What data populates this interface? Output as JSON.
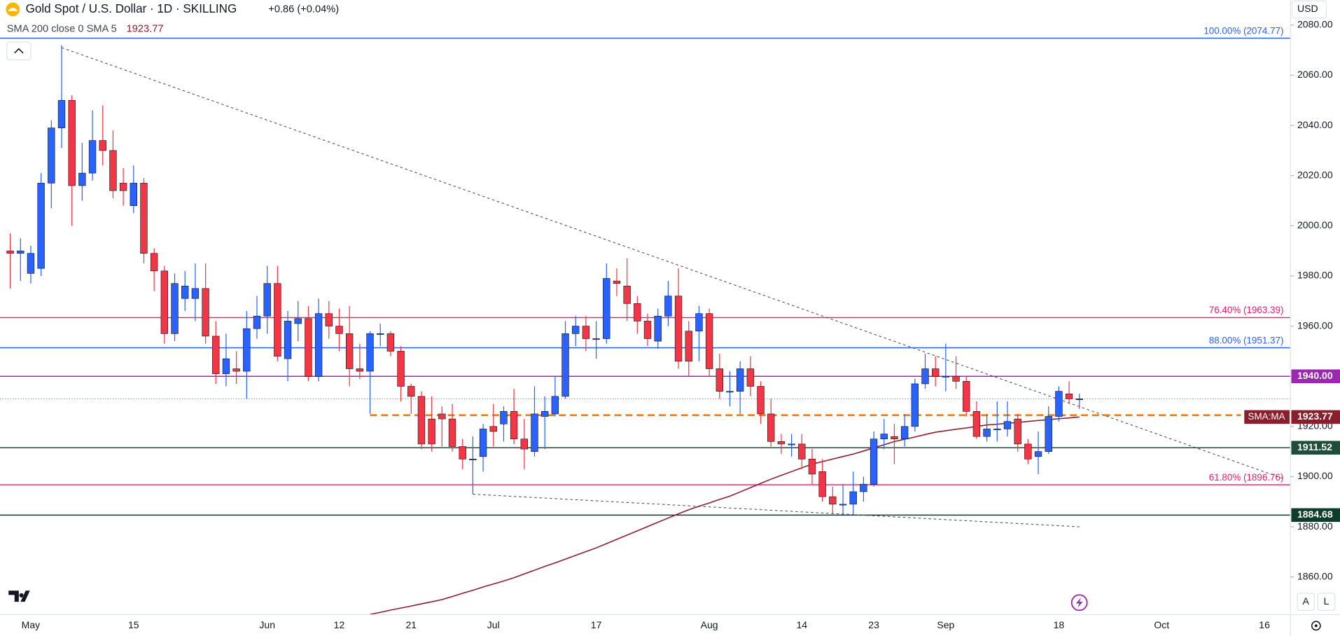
{
  "header": {
    "title": "Gold Spot / U.S. Dollar · 1D · SKILLING",
    "change": "+0.86 (+0.04%)",
    "indicator": "SMA 200 close 0 SMA 5"
  },
  "ui": {
    "currency": "USD",
    "buttons": [
      "A",
      "L"
    ]
  },
  "chart_data": {
    "type": "candlestick",
    "up_color": "#2962ff",
    "down_color": "#f23645",
    "categories": [
      null,
      null,
      "May",
      null,
      null,
      null,
      null,
      null,
      null,
      null,
      null,
      null,
      "15",
      null,
      null,
      null,
      null,
      null,
      null,
      null,
      null,
      null,
      null,
      null,
      null,
      "Jun",
      null,
      null,
      null,
      null,
      null,
      null,
      "12",
      null,
      null,
      null,
      null,
      null,
      null,
      "21",
      null,
      null,
      null,
      null,
      null,
      null,
      null,
      "Jul",
      null,
      null,
      null,
      null,
      null,
      null,
      null,
      null,
      null,
      "17",
      null,
      null,
      null,
      null,
      null,
      null,
      null,
      null,
      null,
      null,
      "Aug",
      null,
      null,
      null,
      null,
      null,
      null,
      null,
      null,
      "14",
      null,
      null,
      null,
      null,
      null,
      null,
      "23",
      null,
      null,
      null,
      null,
      null,
      null,
      "Sep",
      null,
      null,
      null,
      null,
      null,
      null,
      null,
      null,
      null,
      null,
      "18",
      null,
      null,
      null,
      null,
      null,
      null,
      null,
      null,
      null,
      "Oct",
      null,
      null,
      null,
      null,
      null,
      null,
      null,
      null,
      null,
      "16",
      null,
      null
    ],
    "open": [
      1990,
      1989,
      1981,
      1983,
      2017,
      2039,
      2050,
      2016,
      2021,
      2034,
      2030,
      2017,
      2008,
      2017,
      1989,
      1982,
      1957,
      1971,
      1971,
      1975,
      1956,
      1941,
      1943,
      1942,
      1959,
      1964,
      1977,
      1947,
      1961,
      1963,
      1940,
      1965,
      1960,
      1957,
      1943,
      1942,
      1957,
      1957,
      1950,
      1936,
      1932,
      1923,
      1925,
      1923,
      1912,
      1907,
      1908,
      1920,
      1921,
      1926,
      1915,
      1910,
      1924,
      1925,
      1932,
      1957,
      1960,
      1955,
      1955,
      1978,
      1976,
      1969,
      1962,
      1954,
      1964,
      1972,
      1958,
      1958,
      1965,
      1943,
      1934,
      1934,
      1943,
      1936,
      1925,
      1914,
      1913,
      1913,
      1907,
      1902,
      1892,
      1889,
      1889,
      1894,
      1897,
      1915,
      1916,
      1915,
      1920,
      1937,
      1943,
      1940,
      1940,
      1938,
      1926,
      1916,
      1919,
      1919,
      1923,
      1913,
      1908,
      1910,
      1924,
      1933,
      1931,
      null,
      null,
      null,
      null,
      null,
      null,
      null,
      null,
      null,
      null,
      null,
      null,
      null,
      null,
      null,
      null,
      null,
      null,
      null,
      null
    ],
    "high": [
      1997,
      1995,
      1992,
      2021,
      2042,
      2072,
      2052,
      2033,
      2046,
      2048,
      2038,
      2023,
      2024,
      2019,
      1991,
      1984,
      1981,
      1982,
      1985,
      1985,
      1962,
      1957,
      1950,
      1966,
      1972,
      1984,
      1984,
      1966,
      1970,
      1968,
      1971,
      1970,
      1967,
      1968,
      1953,
      1958,
      1961,
      1958,
      1952,
      1937,
      1934,
      1932,
      1928,
      1929,
      1915,
      1916,
      1921,
      1929,
      1928,
      1935,
      1923,
      1936,
      1932,
      1940,
      1962,
      1964,
      1964,
      1962,
      1985,
      1983,
      1987,
      1972,
      1965,
      1967,
      1978,
      1983,
      1962,
      1968,
      1967,
      1949,
      1942,
      1946,
      1948,
      1938,
      1931,
      1917,
      1917,
      1917,
      1911,
      1907,
      1896,
      1897,
      1902,
      1900,
      1918,
      1923,
      1921,
      1925,
      1939,
      1949,
      1948,
      1953,
      1948,
      1940,
      1930,
      1925,
      1930,
      1930,
      1925,
      1915,
      1918,
      1928,
      1936,
      1938,
      1933,
      null,
      null,
      null,
      null,
      null,
      null,
      null,
      null,
      null,
      null,
      null,
      null,
      null,
      null,
      null,
      null,
      null,
      null,
      null,
      null
    ],
    "low": [
      1975,
      1978,
      1977,
      1980,
      2007,
      2031,
      2000,
      2010,
      2018,
      2024,
      2011,
      2008,
      2005,
      1985,
      1974,
      1953,
      1954,
      1966,
      1962,
      1953,
      1937,
      1936,
      1937,
      1931,
      1955,
      1957,
      1946,
      1938,
      1954,
      1938,
      1938,
      1955,
      1950,
      1936,
      1939,
      1925,
      1952,
      1948,
      1930,
      1925,
      1911,
      1910,
      1912,
      1910,
      1903,
      1893,
      1902,
      1912,
      1914,
      1913,
      1903,
      1908,
      1911,
      1924,
      1931,
      1952,
      1950,
      1947,
      1953,
      1972,
      1962,
      1957,
      1952,
      1951,
      1960,
      1943,
      1940,
      1946,
      1940,
      1931,
      1928,
      1925,
      1932,
      1921,
      1912,
      1909,
      1908,
      1903,
      1897,
      1890,
      1885,
      1885,
      1885,
      1890,
      1896,
      1911,
      1905,
      1912,
      1918,
      1935,
      1936,
      1934,
      1935,
      1924,
      1915,
      1914,
      1914,
      1916,
      1910,
      1905,
      1901,
      1909,
      1922,
      1929,
      1927,
      null,
      null,
      null,
      null,
      null,
      null,
      null,
      null,
      null,
      null,
      null,
      null,
      null,
      null,
      null,
      null,
      null,
      null,
      null,
      null
    ],
    "close": [
      1989,
      1990,
      1989,
      2017,
      2039,
      2050,
      2016,
      2021,
      2034,
      2030,
      2014,
      2014,
      2017,
      1989,
      1982,
      1957,
      1977,
      1976,
      1975,
      1956,
      1941,
      1947,
      1942,
      1959,
      1964,
      1977,
      1948,
      1962,
      1963,
      1940,
      1965,
      1960,
      1957,
      1943,
      1942,
      1957,
      1957,
      1950,
      1936,
      1932,
      1913,
      1913,
      1923,
      1912,
      1907,
      1907,
      1919,
      1918,
      1926,
      1915,
      1911,
      1925,
      1926,
      1932,
      1957,
      1960,
      1955,
      1955,
      1979,
      1977,
      1969,
      1962,
      1955,
      1964,
      1972,
      1946,
      1946,
      1965,
      1943,
      1934,
      1934,
      1943,
      1936,
      1925,
      1914,
      1913,
      1913,
      1907,
      1901,
      1892,
      1889,
      1889,
      1894,
      1897,
      1915,
      1917,
      1915,
      1920,
      1937,
      1943,
      1940,
      1940,
      1938,
      1926,
      1916,
      1919,
      1919,
      1922,
      1913,
      1907,
      1910,
      1924,
      1934,
      1931,
      1931,
      null,
      null,
      null,
      null,
      null,
      null,
      null,
      null,
      null,
      null,
      null,
      null,
      null,
      null,
      null,
      null,
      null,
      null,
      null,
      null
    ],
    "sma": {
      "name": "SMA:MA",
      "color": "#8b1e2d",
      "values": [
        null,
        null,
        null,
        null,
        null,
        null,
        null,
        null,
        null,
        null,
        null,
        null,
        null,
        null,
        null,
        null,
        null,
        null,
        null,
        null,
        null,
        null,
        null,
        null,
        null,
        null,
        null,
        null,
        null,
        null,
        null,
        null,
        null,
        null,
        null,
        1845.1,
        1845.9,
        1846.8,
        1847.6,
        1848.4,
        1849.3,
        1850.1,
        1851.0,
        1852.2,
        1853.5,
        1854.7,
        1856.0,
        1857.2,
        1858.4,
        1859.7,
        1861.2,
        1862.7,
        1864.2,
        1865.6,
        1867.1,
        1868.6,
        1870.1,
        1871.6,
        1873.3,
        1875.0,
        1876.7,
        1878.4,
        1880.1,
        1881.8,
        1883.5,
        1885.2,
        1886.8,
        1888.2,
        1889.5,
        1890.9,
        1892.2,
        1893.9,
        1895.6,
        1897.3,
        1899.0,
        1900.5,
        1902.0,
        1903.5,
        1905.0,
        1906.0,
        1907.0,
        1908.0,
        1909.0,
        1910.2,
        1911.5,
        1912.7,
        1914.0,
        1914.9,
        1915.8,
        1916.8,
        1917.7,
        1918.3,
        1918.9,
        1919.4,
        1920.0,
        1920.6,
        1920.9,
        1921.3,
        1921.6,
        1922.0,
        1922.4,
        1922.7,
        1923.1,
        1923.4,
        1923.77,
        null,
        null,
        null,
        null,
        null,
        null,
        null,
        null,
        null,
        null,
        null,
        null,
        null,
        null,
        null,
        null,
        null,
        null,
        null,
        null
      ]
    },
    "ylim": [
      1845,
      2090
    ],
    "yticks": [
      {
        "value": 1860,
        "label": "1860.00"
      },
      {
        "value": 1880,
        "label": "1880.00"
      },
      {
        "value": 1900,
        "label": "1900.00"
      },
      {
        "value": 1920,
        "label": "1920.00"
      },
      {
        "value": 1940,
        "label": "1940.00"
      },
      {
        "value": 1960,
        "label": "1960.00"
      },
      {
        "value": 1980,
        "label": "1980.00"
      },
      {
        "value": 2000,
        "label": "2000.00"
      },
      {
        "value": 2020,
        "label": "2020.00"
      },
      {
        "value": 2040,
        "label": "2040.00"
      },
      {
        "value": 2060,
        "label": "2060.00"
      },
      {
        "value": 2080,
        "label": "2080.00"
      }
    ],
    "grid": false,
    "levels": [
      {
        "value": 2074.77,
        "color": "#2962ff",
        "label": "100.00% (2074.77)"
      },
      {
        "value": 1963.39,
        "color": "#e91e63",
        "label": "76.40% (1963.39)"
      },
      {
        "value": 1951.37,
        "color": "#2962ff",
        "label": "88.00% (1951.37)"
      },
      {
        "value": 1940,
        "color": "#9c27b0",
        "axis_label": "1940.00"
      },
      {
        "value": 1911.52,
        "color": "#1e4d3a",
        "axis_label": "1911.52"
      },
      {
        "value": 1896.76,
        "color": "#e91e63",
        "label": "61.80% (1896.76)"
      },
      {
        "value": 1884.68,
        "color": "#0f3d2c",
        "axis_label": "1884.68"
      }
    ],
    "support": {
      "value": 1924.5,
      "color": "#f57c00",
      "start": 35
    },
    "trendlines": [
      {
        "from": [
          5,
          2071
        ],
        "to": [
          124,
          1899
        ]
      },
      {
        "from": [
          45,
          1893
        ],
        "to": [
          104,
          1880
        ]
      }
    ]
  }
}
